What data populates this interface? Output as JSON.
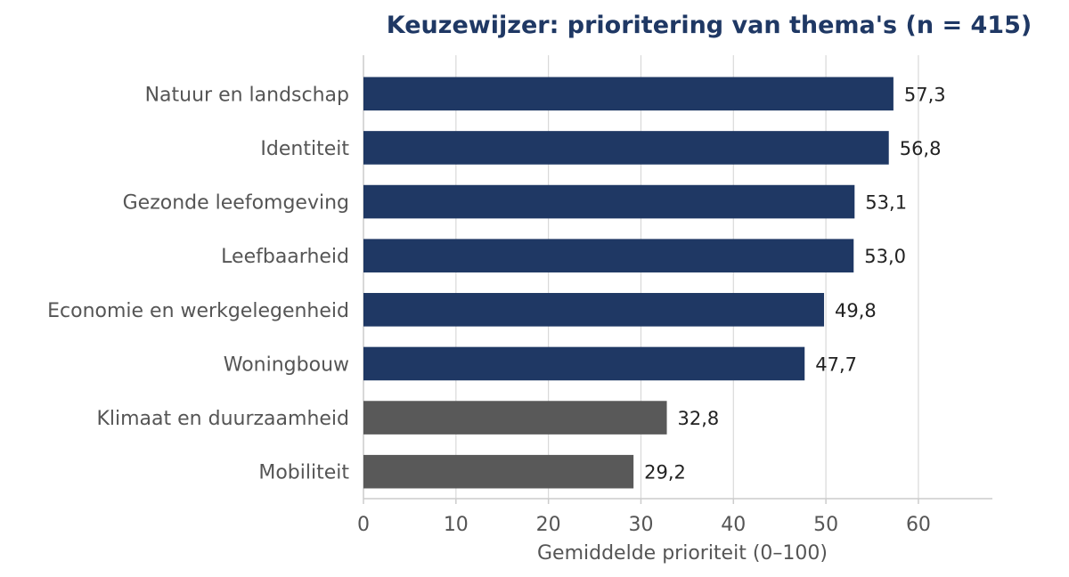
{
  "chart_data": {
    "type": "bar",
    "orientation": "horizontal",
    "title": "Keuzewijzer: prioritering van thema's (n = 415)",
    "xlabel": "Gemiddelde prioriteit (0–100)",
    "ylabel": "",
    "xlim": [
      0,
      68
    ],
    "xticks": [
      0,
      10,
      20,
      30,
      40,
      50,
      60
    ],
    "grid": "vertical",
    "categories": [
      "Natuur en landschap",
      "Identiteit",
      "Gezonde leefomgeving",
      "Leefbaarheid",
      "Economie en werkgelegenheid",
      "Woningbouw",
      "Klimaat en duurzaamheid",
      "Mobiliteit"
    ],
    "values": [
      57.3,
      56.8,
      53.1,
      53.0,
      49.8,
      47.7,
      32.8,
      29.2
    ],
    "value_labels": [
      "57,3",
      "56,8",
      "53,1",
      "53,0",
      "49,8",
      "47,7",
      "32,8",
      "29,2"
    ],
    "bar_colors": [
      "#1f3864",
      "#1f3864",
      "#1f3864",
      "#1f3864",
      "#1f3864",
      "#1f3864",
      "#595959",
      "#595959"
    ]
  },
  "colors": {
    "title": "#1f3864",
    "text": "#555555",
    "value_text": "#222222",
    "grid": "#d9d9d9",
    "axis": "#cccccc"
  }
}
